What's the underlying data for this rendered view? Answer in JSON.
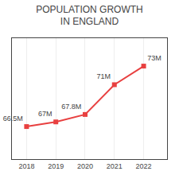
{
  "chart_data": {
    "type": "line",
    "title": "POPULATION GROWTH\nIN ENGLAND",
    "x": [
      2018,
      2019,
      2020,
      2021,
      2022
    ],
    "values": [
      66.5,
      67.0,
      67.8,
      71.0,
      73.0
    ],
    "value_labels": [
      "66.5M",
      "67M",
      "67.8M",
      "71M",
      "73M"
    ],
    "color": "#e84040",
    "marker": "square",
    "data_labels": true,
    "xlim": [
      2017.5,
      2022.8
    ],
    "xticks": [
      2018,
      2019,
      2020,
      2021,
      2022
    ],
    "ylim": [
      63,
      76
    ],
    "grid": true,
    "tick_labels": "x"
  }
}
